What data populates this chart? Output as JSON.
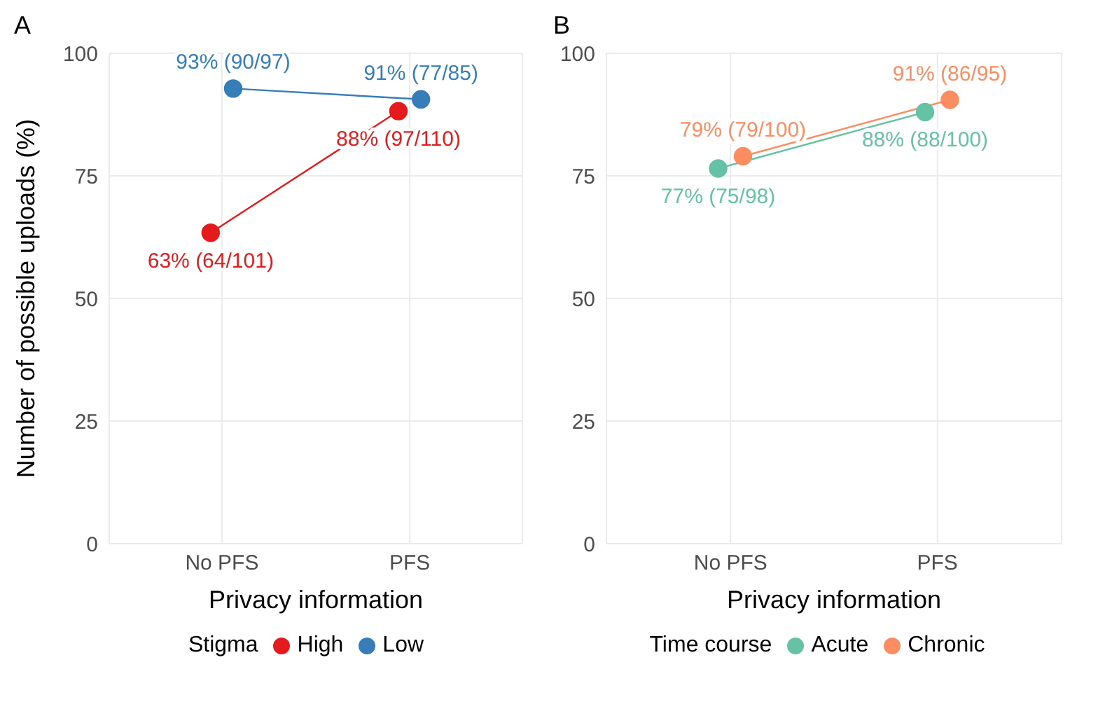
{
  "chart_data": [
    {
      "type": "line",
      "title": "A",
      "xlabel": "Privacy information",
      "ylabel": "Number of possible uploads (%)",
      "legend_title": "Stigma",
      "categories": [
        "No PFS",
        "PFS"
      ],
      "ylim": [
        0,
        100
      ],
      "yticks": [
        0,
        25,
        50,
        75,
        100
      ],
      "grid": true,
      "legend": "bottom",
      "marker": "circle",
      "series": [
        {
          "name": "High",
          "color": "#e41a1c",
          "values": [
            63.4,
            88.2
          ],
          "value_labels": [
            "63% (64/101)",
            "88% (97/110)"
          ]
        },
        {
          "name": "Low",
          "color": "#377eb8",
          "values": [
            92.8,
            90.6
          ],
          "value_labels": [
            "93% (90/97)",
            "91% (77/85)"
          ]
        }
      ]
    },
    {
      "type": "line",
      "title": "B",
      "xlabel": "Privacy information",
      "legend_title": "Time course",
      "categories": [
        "No PFS",
        "PFS"
      ],
      "ylim": [
        0,
        100
      ],
      "yticks": [
        0,
        25,
        50,
        75,
        100
      ],
      "grid": true,
      "legend": "bottom",
      "marker": "circle",
      "series": [
        {
          "name": "Acute",
          "color": "#66c2a5",
          "values": [
            76.5,
            88
          ],
          "value_labels": [
            "77% (75/98)",
            "88% (88/100)"
          ]
        },
        {
          "name": "Chronic",
          "color": "#fc8d62",
          "values": [
            79,
            90.5
          ],
          "value_labels": [
            "79% (79/100)",
            "91% (86/95)"
          ]
        }
      ]
    }
  ]
}
